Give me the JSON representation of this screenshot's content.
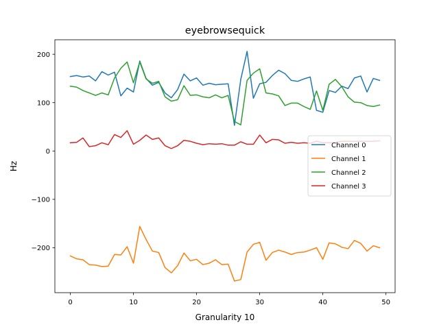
{
  "chart_data": {
    "type": "line",
    "title": "eyebrowsequick",
    "xlabel": "Granularity 10",
    "ylabel": "Hz",
    "xlim": [
      -2.45,
      51.45
    ],
    "ylim": [
      -293,
      230
    ],
    "xticks": [
      0,
      10,
      20,
      30,
      40,
      50
    ],
    "yticks": [
      -200,
      -100,
      0,
      100,
      200
    ],
    "ytick_labels": [
      "−200",
      "−100",
      "0",
      "100",
      "200"
    ],
    "legend_position": "center-right",
    "x": [
      0,
      1,
      2,
      3,
      4,
      5,
      6,
      7,
      8,
      9,
      10,
      11,
      12,
      13,
      14,
      15,
      16,
      17,
      18,
      19,
      20,
      21,
      22,
      23,
      24,
      25,
      26,
      27,
      28,
      29,
      30,
      31,
      32,
      33,
      34,
      35,
      36,
      37,
      38,
      39,
      40,
      41,
      42,
      43,
      44,
      45,
      46,
      47,
      48,
      49
    ],
    "series": [
      {
        "name": "Channel 0",
        "color": "#1f77b4",
        "values": [
          154,
          156,
          153,
          155,
          145,
          164,
          157,
          163,
          114,
          130,
          122,
          186,
          150,
          136,
          142,
          120,
          110,
          127,
          159,
          145,
          151,
          136,
          140,
          137,
          138,
          139,
          53,
          148,
          206,
          109,
          139,
          142,
          156,
          167,
          160,
          146,
          144,
          149,
          153,
          84,
          80,
          125,
          121,
          134,
          129,
          151,
          155,
          122,
          150,
          146
        ]
      },
      {
        "name": "Channel 1",
        "color": "#ff7f0e",
        "values": [
          -217,
          -223,
          -225,
          -235,
          -236,
          -239,
          -238,
          -214,
          -215,
          -198,
          -232,
          -156,
          -183,
          -207,
          -210,
          -241,
          -252,
          -237,
          -211,
          -227,
          -224,
          -235,
          -232,
          -225,
          -235,
          -234,
          -269,
          -266,
          -209,
          -193,
          -189,
          -226,
          -210,
          -205,
          -209,
          -214,
          -210,
          -209,
          -205,
          -200,
          -224,
          -190,
          -192,
          -199,
          -202,
          -185,
          -191,
          -207,
          -196,
          -200
        ]
      },
      {
        "name": "Channel 2",
        "color": "#2ca02c",
        "values": [
          134,
          132,
          125,
          120,
          115,
          120,
          116,
          151,
          171,
          184,
          141,
          184,
          149,
          140,
          144,
          112,
          103,
          106,
          135,
          115,
          116,
          112,
          110,
          116,
          110,
          115,
          61,
          54,
          146,
          161,
          170,
          120,
          118,
          114,
          94,
          99,
          99,
          92,
          86,
          124,
          84,
          138,
          148,
          133,
          112,
          101,
          100,
          94,
          92,
          95
        ]
      },
      {
        "name": "Channel 3",
        "color": "#d62728",
        "values": [
          17,
          18,
          27,
          9,
          11,
          17,
          13,
          34,
          28,
          42,
          14,
          22,
          33,
          24,
          27,
          11,
          5,
          11,
          22,
          20,
          16,
          13,
          15,
          14,
          15,
          12,
          12,
          19,
          14,
          14,
          33,
          17,
          24,
          23,
          16,
          18,
          16,
          17,
          16,
          20,
          17,
          17,
          17,
          20,
          20,
          20,
          20,
          20,
          20,
          21
        ]
      }
    ]
  }
}
